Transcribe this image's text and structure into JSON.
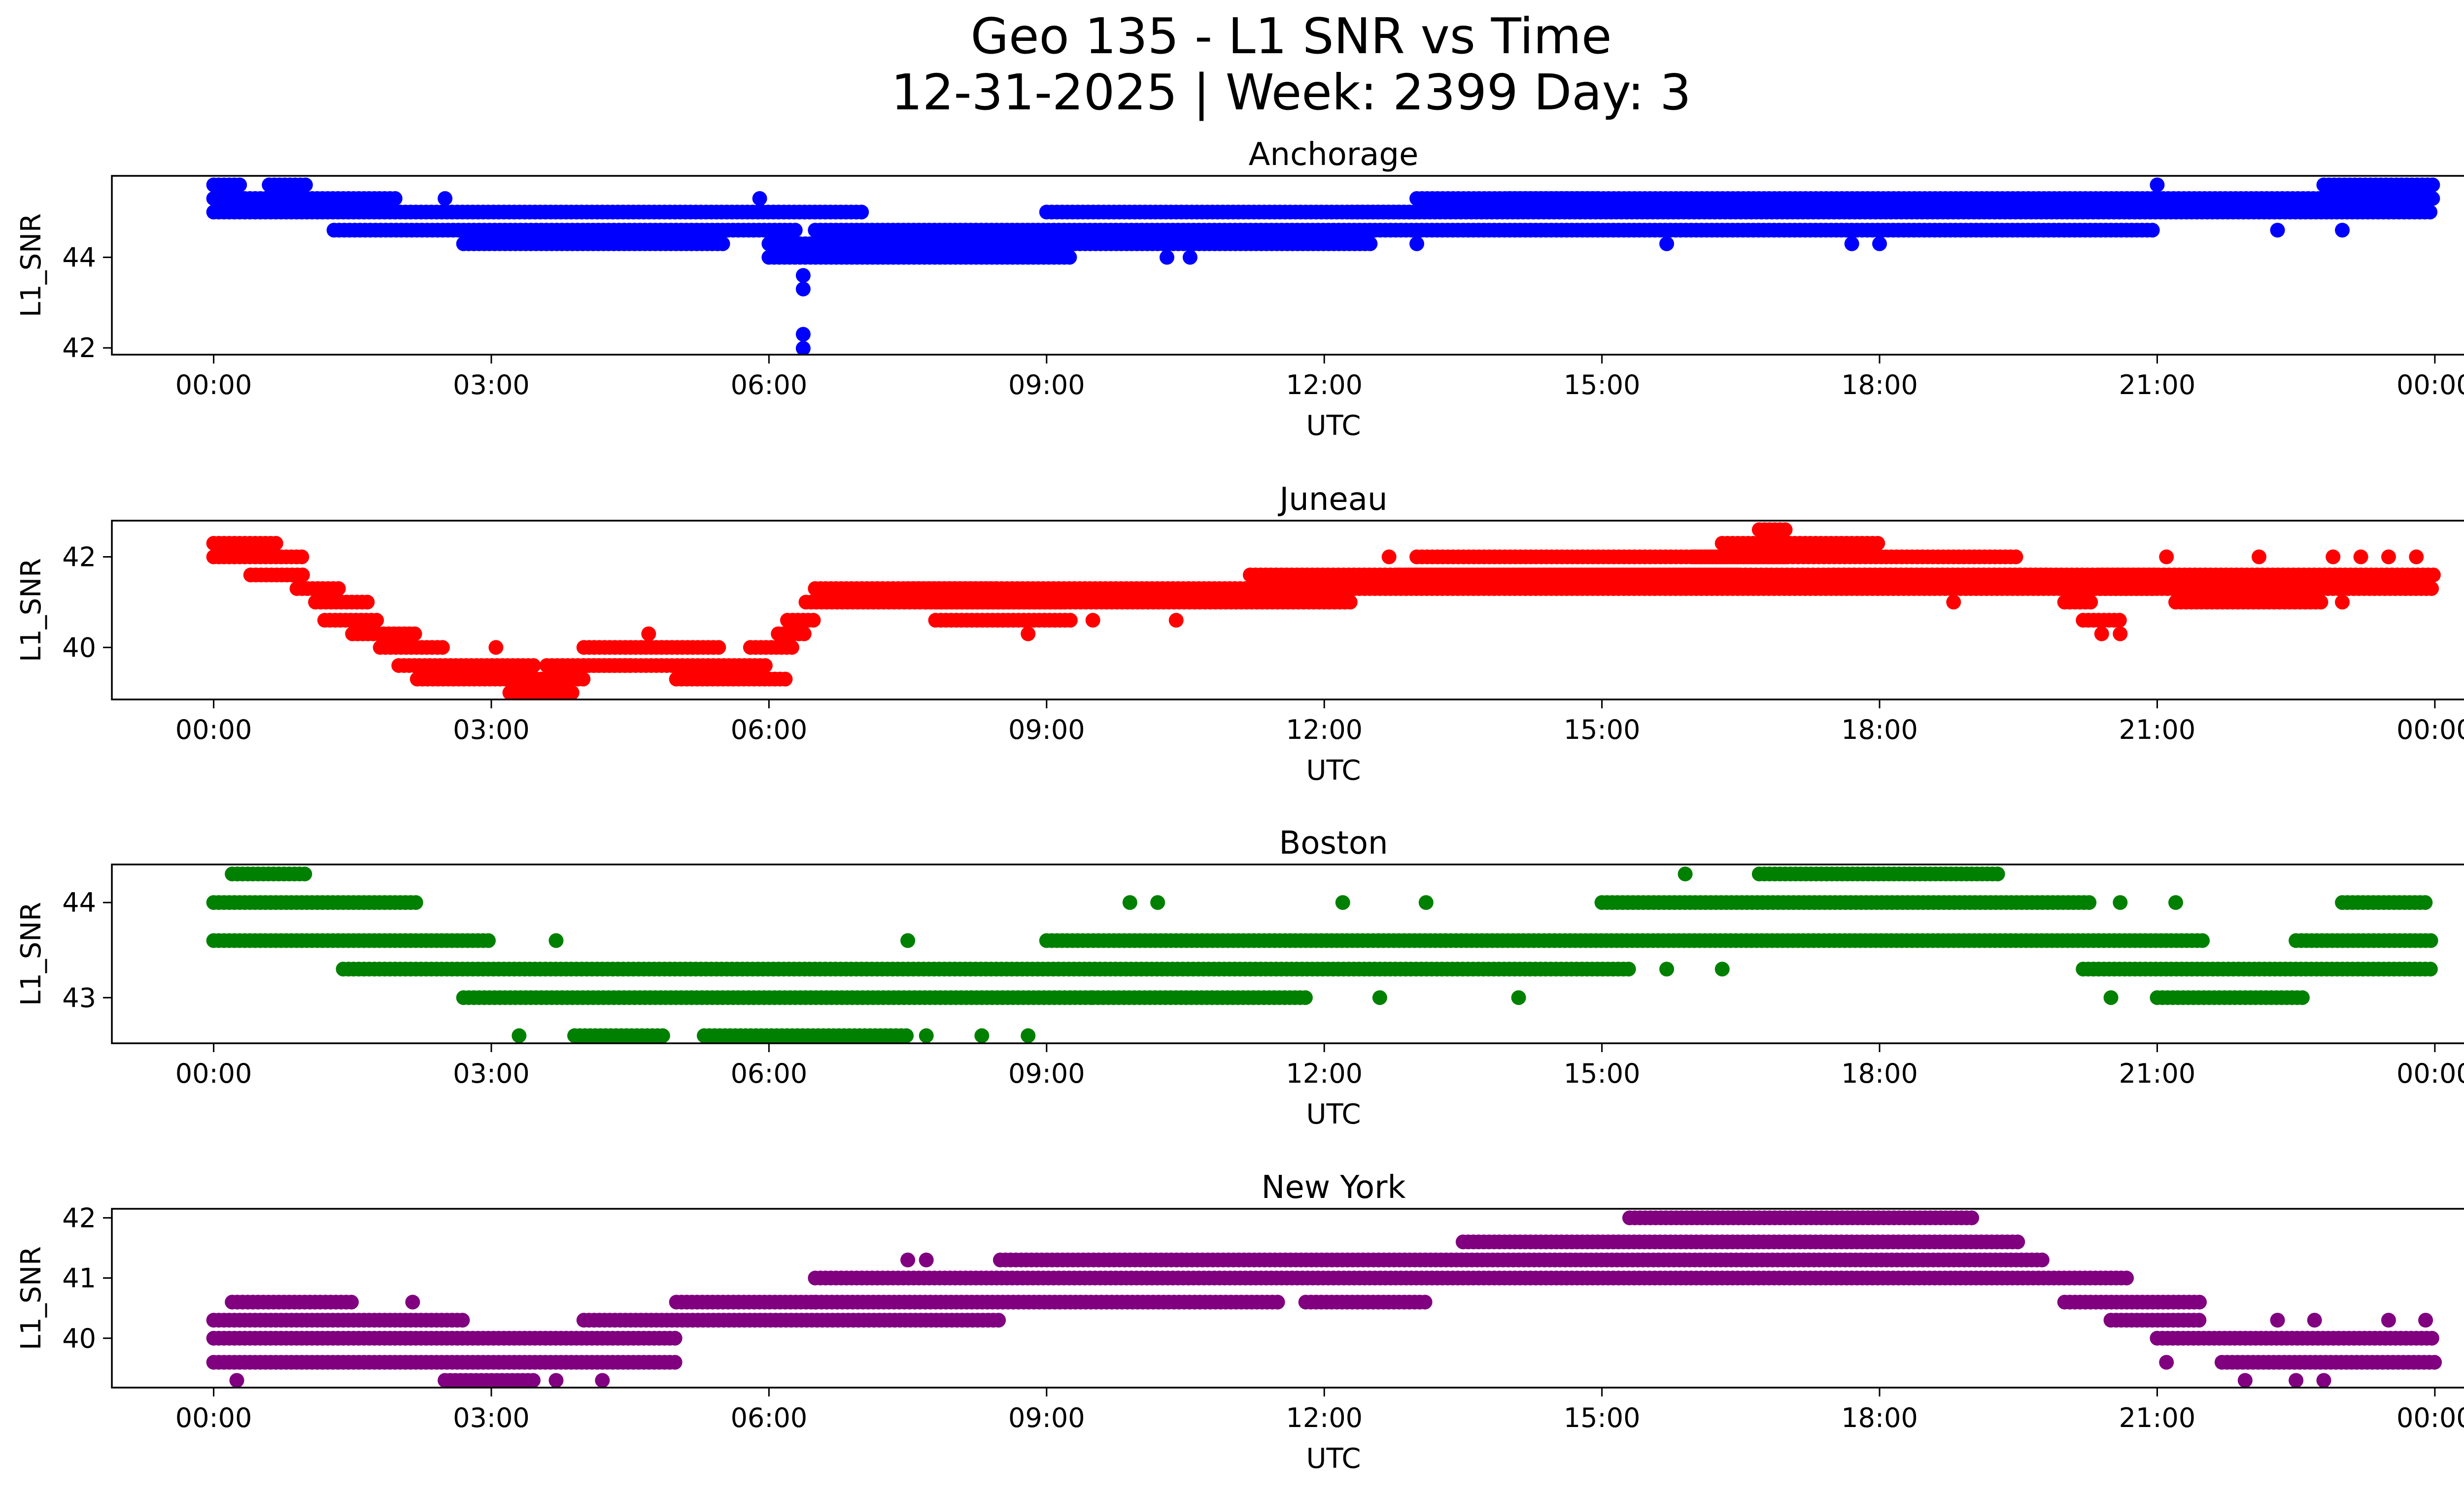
{
  "figure": {
    "title_line1": "Geo 135 - L1 SNR vs Time",
    "title_line2": "12-31-2025 | Week: 2399 Day: 3"
  },
  "chart_data": [
    {
      "type": "scatter",
      "title": "Anchorage",
      "xlabel": "UTC",
      "ylabel": "L1_SNR",
      "color": "#0000ff",
      "xlim": [
        -1.1,
        25.3
      ],
      "ylim": [
        41.85,
        45.8
      ],
      "x_ticks": [
        0,
        3,
        6,
        9,
        12,
        15,
        18,
        21,
        24
      ],
      "x_tick_labels": [
        "00:00",
        "03:00",
        "06:00",
        "09:00",
        "12:00",
        "15:00",
        "18:00",
        "21:00",
        "00:00"
      ],
      "y_ticks": [
        42,
        44
      ],
      "y_tick_labels": [
        "42",
        "44"
      ],
      "levels": [
        41.99,
        42.3,
        42.6,
        42.9,
        43.3,
        43.6,
        44.0,
        44.3,
        44.6,
        45.0,
        45.3,
        45.6
      ],
      "runs": [
        {
          "x0": 0,
          "x1": 0.3,
          "y": 45.6
        },
        {
          "x0": 0,
          "x1": 2.0,
          "y": 45.3
        },
        {
          "x0": 0,
          "x1": 7.0,
          "y": 45.0
        },
        {
          "x0": 0.6,
          "x1": 1.0,
          "y": 45.6
        },
        {
          "x0": 1.3,
          "x1": 6.3,
          "y": 44.6
        },
        {
          "x0": 2.7,
          "x1": 5.5,
          "y": 44.3
        },
        {
          "x0": 6.0,
          "x1": 12.5,
          "y": 44.3
        },
        {
          "x0": 6.0,
          "x1": 9.3,
          "y": 44.0
        },
        {
          "x0": 6.5,
          "x1": 21.0,
          "y": 44.6
        },
        {
          "x0": 9.0,
          "x1": 13.0,
          "y": 45.0
        },
        {
          "x0": 12.3,
          "x1": 24.0,
          "y": 45.0
        },
        {
          "x0": 13.0,
          "x1": 24.0,
          "y": 45.3
        },
        {
          "x0": 14.0,
          "x1": 15.0,
          "y": 45.3
        },
        {
          "x0": 22.8,
          "x1": 24.0,
          "y": 45.6
        }
      ],
      "points": [
        {
          "x": 6.37,
          "y": 43.6
        },
        {
          "x": 6.37,
          "y": 43.3
        },
        {
          "x": 6.37,
          "y": 42.3
        },
        {
          "x": 6.37,
          "y": 41.99
        },
        {
          "x": 2.5,
          "y": 45.3
        },
        {
          "x": 5.9,
          "y": 45.3
        },
        {
          "x": 10.3,
          "y": 44.0
        },
        {
          "x": 10.55,
          "y": 44.0
        },
        {
          "x": 13.0,
          "y": 44.3
        },
        {
          "x": 15.7,
          "y": 44.3
        },
        {
          "x": 17.7,
          "y": 44.3
        },
        {
          "x": 18.0,
          "y": 44.3
        },
        {
          "x": 21.0,
          "y": 45.6
        },
        {
          "x": 22.3,
          "y": 44.6
        },
        {
          "x": 23.0,
          "y": 44.6
        }
      ]
    },
    {
      "type": "scatter",
      "title": "Juneau",
      "xlabel": "UTC",
      "ylabel": "L1_SNR",
      "color": "#ff0000",
      "xlim": [
        -1.1,
        25.3
      ],
      "ylim": [
        38.85,
        42.8
      ],
      "x_ticks": [
        0,
        3,
        6,
        9,
        12,
        15,
        18,
        21,
        24
      ],
      "x_tick_labels": [
        "00:00",
        "03:00",
        "06:00",
        "09:00",
        "12:00",
        "15:00",
        "18:00",
        "21:00",
        "00:00"
      ],
      "y_ticks": [
        40,
        42
      ],
      "y_tick_labels": [
        "40",
        "42"
      ],
      "levels": [
        39.0,
        39.3,
        39.6,
        40.0,
        40.3,
        40.6,
        41.0,
        41.3,
        41.6,
        42.0,
        42.3,
        42.6
      ],
      "runs": [
        {
          "x0": 0,
          "x1": 0.7,
          "y": 42.3
        },
        {
          "x0": 0,
          "x1": 1.0,
          "y": 42.0
        },
        {
          "x0": 0.4,
          "x1": 1.0,
          "y": 41.6
        },
        {
          "x0": 0.9,
          "x1": 1.4,
          "y": 41.3
        },
        {
          "x0": 1.1,
          "x1": 1.7,
          "y": 41.0
        },
        {
          "x0": 1.2,
          "x1": 1.8,
          "y": 40.6
        },
        {
          "x0": 1.5,
          "x1": 2.2,
          "y": 40.3
        },
        {
          "x0": 1.8,
          "x1": 2.5,
          "y": 40.0
        },
        {
          "x0": 2.0,
          "x1": 3.5,
          "y": 39.6
        },
        {
          "x0": 2.2,
          "x1": 4.0,
          "y": 39.3
        },
        {
          "x0": 3.2,
          "x1": 3.9,
          "y": 39.0
        },
        {
          "x0": 3.6,
          "x1": 4.5,
          "y": 39.6
        },
        {
          "x0": 4.0,
          "x1": 5.5,
          "y": 40.0
        },
        {
          "x0": 4.0,
          "x1": 6.0,
          "y": 39.6
        },
        {
          "x0": 5.0,
          "x1": 6.2,
          "y": 39.3
        },
        {
          "x0": 5.8,
          "x1": 6.3,
          "y": 40.0
        },
        {
          "x0": 6.1,
          "x1": 6.4,
          "y": 40.3
        },
        {
          "x0": 6.2,
          "x1": 6.5,
          "y": 40.6
        },
        {
          "x0": 6.4,
          "x1": 12.3,
          "y": 41.0
        },
        {
          "x0": 6.5,
          "x1": 21.0,
          "y": 41.3
        },
        {
          "x0": 7.5,
          "x1": 8.5,
          "y": 41.3
        },
        {
          "x0": 7.7,
          "x1": 9.2,
          "y": 41.0
        },
        {
          "x0": 7.8,
          "x1": 9.3,
          "y": 40.6
        },
        {
          "x0": 11.2,
          "x1": 16.5,
          "y": 41.6
        },
        {
          "x0": 12.8,
          "x1": 19.8,
          "y": 41.6
        },
        {
          "x0": 13.0,
          "x1": 17.0,
          "y": 42.0
        },
        {
          "x0": 16.3,
          "x1": 18.0,
          "y": 42.3
        },
        {
          "x0": 16.0,
          "x1": 19.5,
          "y": 42.0
        },
        {
          "x0": 17.5,
          "x1": 21.0,
          "y": 41.6
        },
        {
          "x0": 20.1,
          "x1": 24.0,
          "y": 41.3
        },
        {
          "x0": 20.4,
          "x1": 24.0,
          "y": 41.6
        },
        {
          "x0": 20.0,
          "x1": 20.3,
          "y": 41.0
        },
        {
          "x0": 20.2,
          "x1": 20.6,
          "y": 40.6
        },
        {
          "x0": 21.2,
          "x1": 22.8,
          "y": 41.0
        },
        {
          "x0": 16.7,
          "x1": 17.0,
          "y": 42.6
        }
      ],
      "points": [
        {
          "x": 3.05,
          "y": 40.0
        },
        {
          "x": 4.7,
          "y": 40.3
        },
        {
          "x": 8.8,
          "y": 40.3
        },
        {
          "x": 9.5,
          "y": 40.6
        },
        {
          "x": 10.4,
          "y": 40.6
        },
        {
          "x": 20.4,
          "y": 40.3
        },
        {
          "x": 20.6,
          "y": 40.3
        },
        {
          "x": 18.8,
          "y": 41.0
        },
        {
          "x": 23.0,
          "y": 41.0
        },
        {
          "x": 21.1,
          "y": 42.0
        },
        {
          "x": 22.1,
          "y": 42.0
        },
        {
          "x": 22.9,
          "y": 42.0
        },
        {
          "x": 23.2,
          "y": 42.0
        },
        {
          "x": 23.5,
          "y": 42.0
        },
        {
          "x": 23.8,
          "y": 42.0
        },
        {
          "x": 12.7,
          "y": 42.0
        }
      ]
    },
    {
      "type": "scatter",
      "title": "Boston",
      "xlabel": "UTC",
      "ylabel": "L1_SNR",
      "color": "#008000",
      "xlim": [
        -1.1,
        25.3
      ],
      "ylim": [
        42.52,
        44.4
      ],
      "x_ticks": [
        0,
        3,
        6,
        9,
        12,
        15,
        18,
        21,
        24
      ],
      "x_tick_labels": [
        "00:00",
        "03:00",
        "06:00",
        "09:00",
        "12:00",
        "15:00",
        "18:00",
        "21:00",
        "00:00"
      ],
      "y_ticks": [
        43,
        44
      ],
      "y_tick_labels": [
        "43",
        "44"
      ],
      "levels": [
        42.6,
        43.0,
        43.3,
        43.6,
        44.0,
        44.3
      ],
      "runs": [
        {
          "x0": 0,
          "x1": 2.2,
          "y": 44.0
        },
        {
          "x0": 0,
          "x1": 3.0,
          "y": 43.6
        },
        {
          "x0": 1.4,
          "x1": 15.3,
          "y": 43.3
        },
        {
          "x0": 2.7,
          "x1": 9.5,
          "y": 43.0
        },
        {
          "x0": 9.0,
          "x1": 21.5,
          "y": 43.6
        },
        {
          "x0": 15.0,
          "x1": 20.3,
          "y": 44.0
        },
        {
          "x0": 16.7,
          "x1": 19.3,
          "y": 44.3
        },
        {
          "x0": 0.2,
          "x1": 1.0,
          "y": 44.3
        },
        {
          "x0": 20.2,
          "x1": 24.0,
          "y": 43.3
        },
        {
          "x0": 22.5,
          "x1": 24.0,
          "y": 43.6
        },
        {
          "x0": 21.0,
          "x1": 22.6,
          "y": 43.0
        },
        {
          "x0": 3.9,
          "x1": 4.9,
          "y": 42.6
        },
        {
          "x0": 5.3,
          "x1": 7.5,
          "y": 42.6
        },
        {
          "x0": 9.5,
          "x1": 11.8,
          "y": 43.0
        },
        {
          "x0": 23.0,
          "x1": 23.9,
          "y": 44.0
        }
      ],
      "points": [
        {
          "x": 3.3,
          "y": 42.6
        },
        {
          "x": 7.7,
          "y": 42.6
        },
        {
          "x": 8.3,
          "y": 42.6
        },
        {
          "x": 8.8,
          "y": 42.6
        },
        {
          "x": 3.7,
          "y": 43.6
        },
        {
          "x": 7.5,
          "y": 43.6
        },
        {
          "x": 9.9,
          "y": 44.0
        },
        {
          "x": 10.2,
          "y": 44.0
        },
        {
          "x": 12.2,
          "y": 44.0
        },
        {
          "x": 13.1,
          "y": 44.0
        },
        {
          "x": 14.1,
          "y": 43.0
        },
        {
          "x": 12.6,
          "y": 43.0
        },
        {
          "x": 15.9,
          "y": 44.3
        },
        {
          "x": 16.3,
          "y": 43.3
        },
        {
          "x": 20.5,
          "y": 43.0
        },
        {
          "x": 20.6,
          "y": 44.0
        },
        {
          "x": 21.2,
          "y": 44.0
        },
        {
          "x": 15.7,
          "y": 43.3
        }
      ]
    },
    {
      "type": "scatter",
      "title": "New York",
      "xlabel": "UTC",
      "ylabel": "L1_SNR",
      "color": "#800080",
      "xlim": [
        -1.1,
        25.3
      ],
      "ylim": [
        39.18,
        42.15
      ],
      "x_ticks": [
        0,
        3,
        6,
        9,
        12,
        15,
        18,
        21,
        24
      ],
      "x_tick_labels": [
        "00:00",
        "03:00",
        "06:00",
        "09:00",
        "12:00",
        "15:00",
        "18:00",
        "21:00",
        "00:00"
      ],
      "y_ticks": [
        40,
        41,
        42
      ],
      "y_tick_labels": [
        "40",
        "41",
        "42"
      ],
      "levels": [
        39.3,
        39.6,
        40.0,
        40.3,
        40.6,
        41.0,
        41.3,
        41.6,
        42.0
      ],
      "runs": [
        {
          "x0": 0,
          "x1": 2.7,
          "y": 40.3
        },
        {
          "x0": 0,
          "x1": 5.0,
          "y": 40.0
        },
        {
          "x0": 0,
          "x1": 5.0,
          "y": 39.6
        },
        {
          "x0": 0.2,
          "x1": 1.5,
          "y": 40.6
        },
        {
          "x0": 2.5,
          "x1": 3.5,
          "y": 39.3
        },
        {
          "x0": 4.0,
          "x1": 8.5,
          "y": 40.3
        },
        {
          "x0": 5.0,
          "x1": 11.5,
          "y": 40.6
        },
        {
          "x0": 6.5,
          "x1": 20.7,
          "y": 41.0
        },
        {
          "x0": 8.5,
          "x1": 19.8,
          "y": 41.3
        },
        {
          "x0": 13.5,
          "x1": 19.5,
          "y": 41.6
        },
        {
          "x0": 15.3,
          "x1": 19.0,
          "y": 42.0
        },
        {
          "x0": 20.0,
          "x1": 21.5,
          "y": 40.6
        },
        {
          "x0": 20.5,
          "x1": 21.5,
          "y": 40.3
        },
        {
          "x0": 21.0,
          "x1": 24.0,
          "y": 40.0
        },
        {
          "x0": 21.7,
          "x1": 24.0,
          "y": 39.6
        },
        {
          "x0": 11.8,
          "x1": 13.1,
          "y": 40.6
        }
      ],
      "points": [
        {
          "x": 0.25,
          "y": 39.3
        },
        {
          "x": 3.7,
          "y": 39.3
        },
        {
          "x": 4.2,
          "y": 39.3
        },
        {
          "x": 2.15,
          "y": 40.6
        },
        {
          "x": 7.5,
          "y": 41.3
        },
        {
          "x": 7.7,
          "y": 41.3
        },
        {
          "x": 6.5,
          "y": 40.6
        },
        {
          "x": 21.1,
          "y": 39.6
        },
        {
          "x": 21.95,
          "y": 39.3
        },
        {
          "x": 22.5,
          "y": 39.3
        },
        {
          "x": 22.8,
          "y": 39.3
        },
        {
          "x": 22.3,
          "y": 40.3
        },
        {
          "x": 22.7,
          "y": 40.3
        },
        {
          "x": 23.5,
          "y": 40.3
        },
        {
          "x": 23.9,
          "y": 40.3
        }
      ]
    }
  ]
}
